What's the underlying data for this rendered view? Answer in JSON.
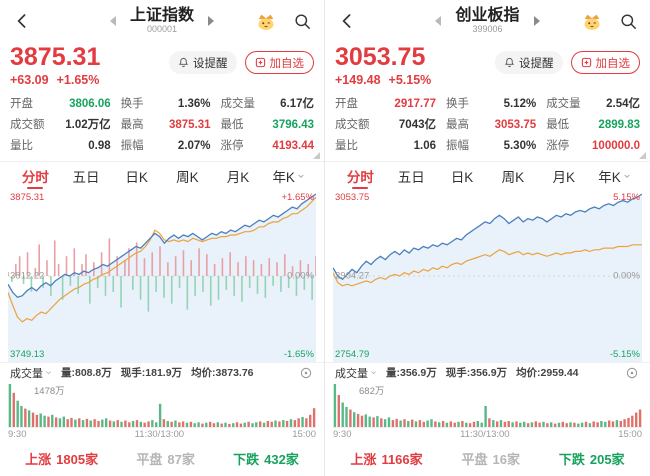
{
  "colors": {
    "up_red": "#e23b40",
    "down_green": "#17a35d",
    "flat_gray": "#b5b5b5",
    "price_line_blue": "#4b7fbe",
    "avg_line_orange": "#eaa33e",
    "area_fill_blue": "#e9f1fa",
    "center_bar_red": "#e8a0a4",
    "center_bar_green": "#94d3b3",
    "vol_bar_red": "#e0716a",
    "vol_bar_green": "#58b888"
  },
  "icons": {
    "back": "back-chevron",
    "prev_stock": "triangle-left",
    "next_stock": "triangle-right",
    "crown_cat": "crown-cat-emoji",
    "search": "magnifier",
    "alert_bell": "bell",
    "watch_add": "plus-square",
    "tab_caret": "caret-down",
    "vol_caret": "caret-down",
    "settings": "circle-dot",
    "stats_expand": "corner-triangle"
  },
  "panels": [
    {
      "title": "上证指数",
      "code": "000001",
      "price": "3875.31",
      "change": "+63.09",
      "change_pct": "+1.65%",
      "buttons": {
        "alert": "设提醒",
        "watchlist": "加自选"
      },
      "stats": [
        {
          "label": "开盘",
          "value": "3806.06"
        },
        {
          "label": "换手",
          "value": "1.36%"
        },
        {
          "label": "成交量",
          "value": "6.17亿"
        },
        {
          "label": "成交额",
          "value": "1.02万亿"
        },
        {
          "label": "最高",
          "value": "3875.31"
        },
        {
          "label": "最低",
          "value": "3796.43"
        },
        {
          "label": "量比",
          "value": "0.98"
        },
        {
          "label": "振幅",
          "value": "2.07%"
        },
        {
          "label": "涨停",
          "value": "4193.44"
        }
      ],
      "tabs": [
        "分时",
        "五日",
        "日K",
        "周K",
        "月K",
        "年K"
      ],
      "chart": {
        "high": "3875.31",
        "high_pct": "+1.65%",
        "mid": "3812.22",
        "mid_pct": "0.00%",
        "low": "3749.13",
        "low_pct": "-1.65%",
        "line": [
          0.45,
          0.4,
          0.37,
          0.38,
          0.41,
          0.43,
          0.41,
          0.44,
          0.46,
          0.44,
          0.47,
          0.49,
          0.51,
          0.5,
          0.52,
          0.51,
          0.53,
          0.52,
          0.54,
          0.55,
          0.57,
          0.56,
          0.58,
          0.6,
          0.62,
          0.64,
          0.66,
          0.68,
          0.67,
          0.7,
          0.73,
          0.76,
          0.74,
          0.7,
          0.73,
          0.75,
          0.73,
          0.75,
          0.74,
          0.76,
          0.74,
          0.72,
          0.74,
          0.76,
          0.75,
          0.77,
          0.76,
          0.78,
          0.77,
          0.79,
          0.81,
          0.8,
          0.82,
          0.84,
          0.83,
          0.85,
          0.87,
          0.86,
          0.88,
          0.9,
          0.92,
          0.91,
          0.94,
          0.96,
          0.98,
          1.0
        ],
        "avg": [
          0.4,
          0.32,
          0.25,
          0.22,
          0.24,
          0.23,
          0.26,
          0.28,
          0.27,
          0.3,
          0.33,
          0.36,
          0.38,
          0.4,
          0.42,
          0.43,
          0.45,
          0.46,
          0.48,
          0.49,
          0.51,
          0.52,
          0.54,
          0.56,
          0.58,
          0.6,
          0.62,
          0.64,
          0.65,
          0.68,
          0.72,
          0.78,
          0.76,
          0.72,
          0.71,
          0.72,
          0.71,
          0.72,
          0.71,
          0.73,
          0.72,
          0.71,
          0.72,
          0.73,
          0.73,
          0.74,
          0.74,
          0.75,
          0.75,
          0.76,
          0.77,
          0.77,
          0.78,
          0.8,
          0.8,
          0.82,
          0.83,
          0.83,
          0.85,
          0.86,
          0.88,
          0.88,
          0.9,
          0.92,
          0.95,
          0.98
        ],
        "center_bars": [
          0.1,
          -0.15,
          0.3,
          0.5,
          -0.2,
          0.6,
          -0.4,
          0.2,
          0.8,
          -0.3,
          0.4,
          -0.5,
          0.9,
          0.3,
          -0.6,
          0.5,
          -0.25,
          0.7,
          -0.45,
          0.3,
          0.55,
          -0.7,
          0.35,
          -0.3,
          0.6,
          -0.5,
          0.95,
          -0.4,
          0.5,
          -0.8,
          0.4,
          0.7,
          -0.35,
          0.85,
          -0.6,
          0.45,
          -0.9,
          0.6,
          -0.4,
          0.75,
          -0.55,
          0.35,
          -0.7,
          0.5,
          -0.3,
          0.65,
          -0.85,
          0.4,
          -0.5,
          0.7,
          -0.4,
          0.55,
          -0.75,
          0.3,
          -0.6,
          0.45,
          -0.35,
          0.6,
          -0.5,
          0.35,
          -0.65,
          0.5,
          -0.3,
          0.4,
          -0.45,
          0.3,
          -0.55,
          0.45,
          -0.25,
          0.35,
          -0.4,
          0.55,
          -0.3,
          0.25,
          -0.5,
          0.4,
          -0.35,
          0.3,
          -0.6,
          0.5
        ]
      },
      "volume": {
        "title": "成交量",
        "vol_label": "量:808.8万",
        "cur_label": "现手:181.9万",
        "avg_label": "均价:3873.76",
        "peak": "1478万",
        "heights": [
          1.0,
          0.8,
          0.62,
          0.5,
          0.44,
          0.4,
          0.35,
          0.3,
          0.33,
          0.28,
          0.26,
          0.3,
          0.24,
          0.22,
          0.26,
          0.2,
          0.23,
          0.19,
          0.22,
          0.18,
          0.21,
          0.17,
          0.2,
          0.16,
          0.19,
          0.22,
          0.17,
          0.15,
          0.18,
          0.14,
          0.17,
          0.13,
          0.16,
          0.18,
          0.14,
          0.12,
          0.15,
          0.18,
          0.13,
          0.55,
          0.2,
          0.16,
          0.14,
          0.17,
          0.13,
          0.15,
          0.12,
          0.14,
          0.11,
          0.13,
          0.1,
          0.12,
          0.14,
          0.11,
          0.13,
          0.1,
          0.12,
          0.09,
          0.11,
          0.13,
          0.1,
          0.12,
          0.14,
          0.11,
          0.13,
          0.15,
          0.12,
          0.16,
          0.14,
          0.17,
          0.15,
          0.18,
          0.16,
          0.2,
          0.18,
          0.22,
          0.25,
          0.22,
          0.3,
          0.45
        ],
        "bar_colors": "grggrgrrggrgrggrrgrgrgrrggrgrgrrgrgrrgggrgrgrrgrggrgrrgrgrgrrgrggrgrrgrgrgrrgrrr"
      },
      "time_axis": [
        "9:30",
        "11:30/13:00",
        "15:00"
      ],
      "breadth": [
        {
          "label": "上涨",
          "value": "1805家"
        },
        {
          "label": "平盘",
          "value": "87家"
        },
        {
          "label": "下跌",
          "value": "432家"
        }
      ]
    },
    {
      "title": "创业板指",
      "code": "399006",
      "price": "3053.75",
      "change": "+149.48",
      "change_pct": "+5.15%",
      "buttons": {
        "alert": "设提醒",
        "watchlist": "加自选"
      },
      "stats": [
        {
          "label": "开盘",
          "value": "2917.77"
        },
        {
          "label": "换手",
          "value": "5.12%"
        },
        {
          "label": "成交量",
          "value": "2.54亿"
        },
        {
          "label": "成交额",
          "value": "7043亿"
        },
        {
          "label": "最高",
          "value": "3053.75"
        },
        {
          "label": "最低",
          "value": "2899.83"
        },
        {
          "label": "量比",
          "value": "1.06"
        },
        {
          "label": "振幅",
          "value": "5.30%"
        },
        {
          "label": "涨停",
          "value": "100000.0"
        }
      ],
      "tabs": [
        "分时",
        "五日",
        "日K",
        "周K",
        "月K",
        "年K"
      ],
      "chart": {
        "high": "3053.75",
        "high_pct": "5.15%",
        "mid": "2904.27",
        "mid_pct": "0.00%",
        "low": "2754.79",
        "low_pct": "-5.15%",
        "line": [
          0.55,
          0.5,
          0.48,
          0.51,
          0.54,
          0.52,
          0.56,
          0.59,
          0.57,
          0.6,
          0.62,
          0.6,
          0.63,
          0.65,
          0.63,
          0.66,
          0.64,
          0.67,
          0.66,
          0.68,
          0.67,
          0.69,
          0.68,
          0.7,
          0.69,
          0.71,
          0.73,
          0.72,
          0.75,
          0.77,
          0.79,
          0.81,
          0.83,
          0.82,
          0.85,
          0.87,
          0.85,
          0.82,
          0.84,
          0.86,
          0.83,
          0.85,
          0.84,
          0.86,
          0.85,
          0.83,
          0.85,
          0.87,
          0.86,
          0.88,
          0.87,
          0.89,
          0.9,
          0.89,
          0.91,
          0.92,
          0.91,
          0.93,
          0.94,
          0.93,
          0.95,
          0.96,
          0.95,
          0.97,
          0.98,
          1.0
        ],
        "avg": [
          0.52,
          0.46,
          0.44,
          0.45,
          0.44,
          0.45,
          0.46,
          0.47,
          0.46,
          0.48,
          0.49,
          0.48,
          0.5,
          0.51,
          0.5,
          0.52,
          0.51,
          0.53,
          0.52,
          0.54,
          0.53,
          0.55,
          0.54,
          0.56,
          0.55,
          0.57,
          0.58,
          0.57,
          0.59,
          0.6,
          0.61,
          0.62,
          0.63,
          0.62,
          0.64,
          0.66,
          0.65,
          0.63,
          0.64,
          0.65,
          0.63,
          0.64,
          0.63,
          0.64,
          0.63,
          0.62,
          0.63,
          0.64,
          0.63,
          0.64,
          0.64,
          0.65,
          0.65,
          0.66,
          0.65,
          0.66,
          0.66,
          0.67,
          0.67,
          0.67,
          0.68,
          0.68,
          0.68,
          0.69,
          0.69,
          0.69
        ],
        "center_bars": []
      },
      "volume": {
        "title": "成交量",
        "vol_label": "量:356.9万",
        "cur_label": "现手:356.9万",
        "avg_label": "均价:2959.44",
        "peak": "682万",
        "heights": [
          1.0,
          0.75,
          0.58,
          0.48,
          0.42,
          0.36,
          0.32,
          0.28,
          0.31,
          0.26,
          0.24,
          0.27,
          0.22,
          0.2,
          0.24,
          0.18,
          0.21,
          0.17,
          0.2,
          0.16,
          0.19,
          0.15,
          0.18,
          0.14,
          0.17,
          0.2,
          0.15,
          0.13,
          0.16,
          0.12,
          0.15,
          0.12,
          0.14,
          0.16,
          0.12,
          0.11,
          0.14,
          0.16,
          0.12,
          0.5,
          0.22,
          0.18,
          0.15,
          0.18,
          0.14,
          0.16,
          0.13,
          0.15,
          0.12,
          0.14,
          0.11,
          0.13,
          0.15,
          0.12,
          0.14,
          0.11,
          0.13,
          0.1,
          0.12,
          0.14,
          0.11,
          0.13,
          0.12,
          0.1,
          0.12,
          0.14,
          0.11,
          0.15,
          0.13,
          0.16,
          0.14,
          0.17,
          0.15,
          0.18,
          0.16,
          0.2,
          0.23,
          0.28,
          0.35,
          0.42
        ],
        "bar_colors": "grggrgrrggrgrggrrgrgrgrrggrgrgrrgrgrrgggrgrgrrgrggrgrrgrgrgrrgrggrgrrggrrgrrrrrr"
      },
      "time_axis": [
        "9:30",
        "11:30/13:00",
        "15:00"
      ],
      "breadth": [
        {
          "label": "上涨",
          "value": "1166家"
        },
        {
          "label": "平盘",
          "value": "16家"
        },
        {
          "label": "下跌",
          "value": "205家"
        }
      ]
    }
  ]
}
